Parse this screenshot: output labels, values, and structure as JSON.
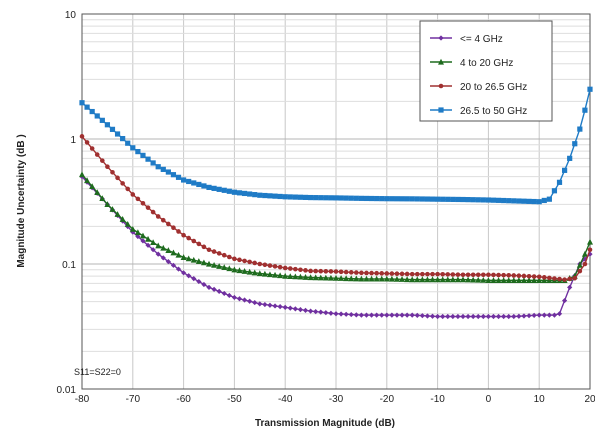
{
  "chart_data": {
    "type": "line",
    "title": "",
    "xlabel": "Transmission Magnitude (dB)",
    "ylabel": "Magnitude Uncertainty (dB )",
    "xlim": [
      -80,
      20
    ],
    "ylim": [
      0.01,
      10
    ],
    "yscale": "log",
    "x_ticks": [
      -80,
      -70,
      -60,
      -50,
      -40,
      -30,
      -20,
      -10,
      0,
      10,
      20
    ],
    "x_tick_labels": [
      "-80",
      "-70",
      "-60",
      "-50",
      "-40",
      "-30",
      "-20",
      "-10",
      "0",
      "10",
      "20"
    ],
    "y_ticks": [
      0.01,
      0.1,
      1,
      10
    ],
    "y_tick_labels": [
      "0.01",
      "0.1",
      "1",
      "10"
    ],
    "grid": true,
    "legend_position": "top-right",
    "annotation": "S11=S22=0",
    "series": [
      {
        "name": "<= 4 GHz",
        "color": "#7030a0",
        "marker": "diamond",
        "points": [
          [
            -80,
            0.5
          ],
          [
            -75,
            0.3
          ],
          [
            -70,
            0.18
          ],
          [
            -65,
            0.12
          ],
          [
            -60,
            0.085
          ],
          [
            -55,
            0.065
          ],
          [
            -50,
            0.054
          ],
          [
            -45,
            0.048
          ],
          [
            -40,
            0.045
          ],
          [
            -35,
            0.042
          ],
          [
            -30,
            0.04
          ],
          [
            -25,
            0.039
          ],
          [
            -20,
            0.039
          ],
          [
            -15,
            0.039
          ],
          [
            -10,
            0.038
          ],
          [
            -5,
            0.038
          ],
          [
            0,
            0.038
          ],
          [
            5,
            0.038
          ],
          [
            10,
            0.039
          ],
          [
            13,
            0.039
          ],
          [
            14,
            0.04
          ],
          [
            16,
            0.065
          ],
          [
            18,
            0.1
          ],
          [
            20,
            0.12
          ]
        ]
      },
      {
        "name": "4 to 20 GHz",
        "color": "#1e6b1e",
        "marker": "triangle",
        "points": [
          [
            -80,
            0.52
          ],
          [
            -75,
            0.3
          ],
          [
            -70,
            0.19
          ],
          [
            -65,
            0.14
          ],
          [
            -60,
            0.113
          ],
          [
            -55,
            0.1
          ],
          [
            -50,
            0.09
          ],
          [
            -45,
            0.084
          ],
          [
            -40,
            0.08
          ],
          [
            -35,
            0.078
          ],
          [
            -30,
            0.077
          ],
          [
            -25,
            0.076
          ],
          [
            -20,
            0.076
          ],
          [
            -15,
            0.075
          ],
          [
            -10,
            0.075
          ],
          [
            -5,
            0.075
          ],
          [
            0,
            0.074
          ],
          [
            5,
            0.074
          ],
          [
            10,
            0.074
          ],
          [
            15,
            0.074
          ],
          [
            17,
            0.08
          ],
          [
            19,
            0.12
          ],
          [
            20,
            0.15
          ]
        ]
      },
      {
        "name": "20 to 26.5 GHz",
        "color": "#a03030",
        "marker": "circle",
        "points": [
          [
            -80,
            1.05
          ],
          [
            -75,
            0.6
          ],
          [
            -70,
            0.36
          ],
          [
            -65,
            0.24
          ],
          [
            -60,
            0.17
          ],
          [
            -55,
            0.13
          ],
          [
            -50,
            0.11
          ],
          [
            -45,
            0.1
          ],
          [
            -40,
            0.093
          ],
          [
            -35,
            0.088
          ],
          [
            -30,
            0.087
          ],
          [
            -25,
            0.085
          ],
          [
            -20,
            0.084
          ],
          [
            -15,
            0.083
          ],
          [
            -10,
            0.083
          ],
          [
            -5,
            0.082
          ],
          [
            0,
            0.082
          ],
          [
            5,
            0.081
          ],
          [
            10,
            0.079
          ],
          [
            15,
            0.075
          ],
          [
            17,
            0.077
          ],
          [
            19,
            0.1
          ],
          [
            20,
            0.13
          ]
        ]
      },
      {
        "name": "26.5 to 50 GHz",
        "color": "#1f7bc6",
        "marker": "square",
        "points": [
          [
            -80,
            1.95
          ],
          [
            -75,
            1.3
          ],
          [
            -70,
            0.85
          ],
          [
            -65,
            0.6
          ],
          [
            -60,
            0.47
          ],
          [
            -55,
            0.41
          ],
          [
            -50,
            0.375
          ],
          [
            -45,
            0.355
          ],
          [
            -40,
            0.345
          ],
          [
            -35,
            0.34
          ],
          [
            -30,
            0.338
          ],
          [
            -25,
            0.335
          ],
          [
            -20,
            0.333
          ],
          [
            -15,
            0.332
          ],
          [
            -10,
            0.33
          ],
          [
            -5,
            0.328
          ],
          [
            0,
            0.325
          ],
          [
            5,
            0.32
          ],
          [
            10,
            0.315
          ],
          [
            12,
            0.33
          ],
          [
            14,
            0.45
          ],
          [
            16,
            0.7
          ],
          [
            18,
            1.2
          ],
          [
            19,
            1.7
          ],
          [
            20,
            2.5
          ]
        ]
      }
    ]
  }
}
